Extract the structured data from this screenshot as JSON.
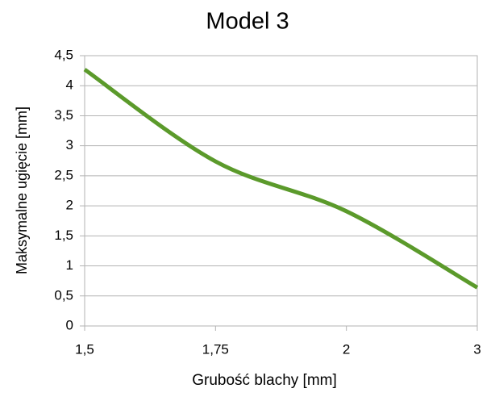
{
  "chart_data": {
    "type": "line",
    "title": "Model 3",
    "x_label": "Grubość blachy [mm]",
    "y_label": "Maksymalne ugięcie [mm]",
    "categories": [
      "1,5",
      "1,75",
      "2",
      "3"
    ],
    "series": [
      {
        "name": "Model 3",
        "color": "#5b9a2b",
        "values": [
          4.27,
          2.74,
          1.91,
          0.64
        ]
      }
    ],
    "ylim": [
      0,
      4.5
    ],
    "yticks": [
      0,
      {
        "value": 0.5,
        "label": "0,5"
      },
      1,
      {
        "value": 1.5,
        "label": "1,5"
      },
      2,
      {
        "value": 2.5,
        "label": "2,5"
      },
      3,
      {
        "value": 3.5,
        "label": "3,5"
      },
      4,
      {
        "value": 4.5,
        "label": "4,5"
      }
    ],
    "grid": true
  }
}
